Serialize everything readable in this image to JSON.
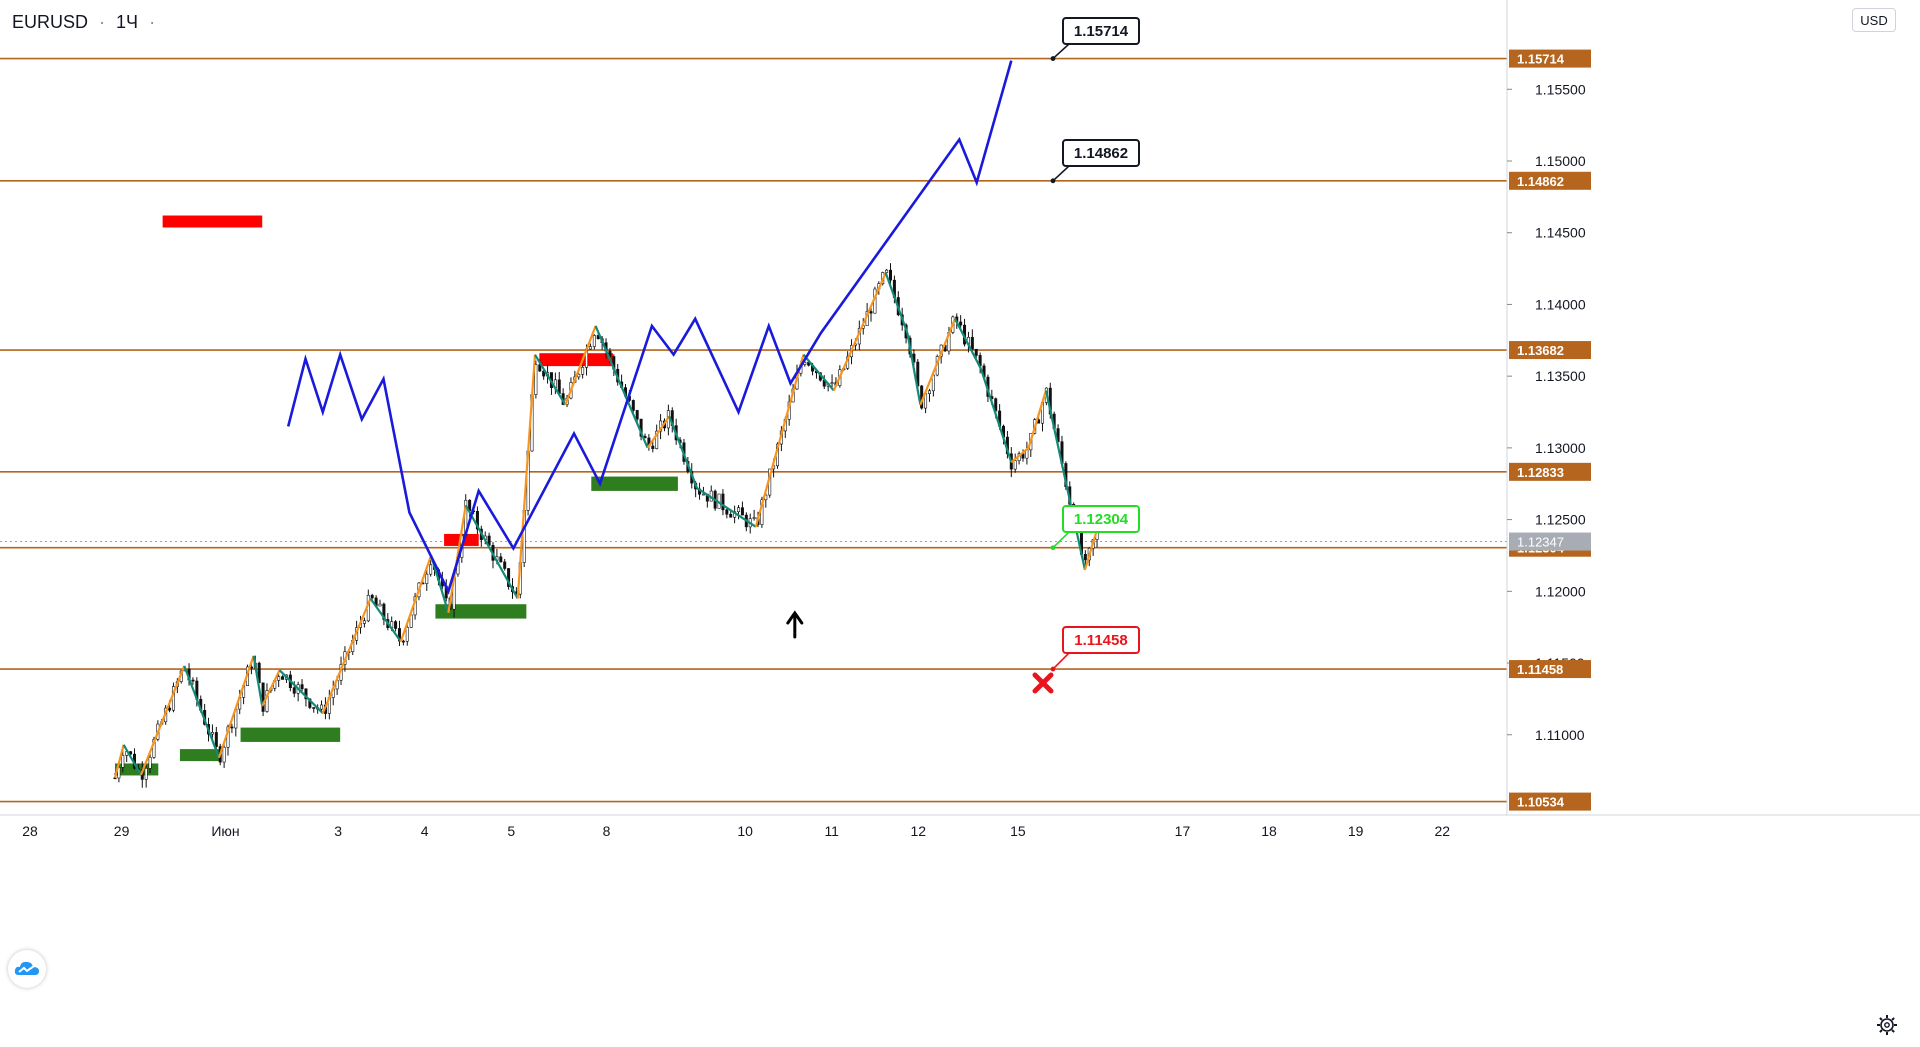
{
  "header": {
    "symbol": "EURUSD",
    "separator": "·",
    "interval": "1Ч",
    "currency": "USD"
  },
  "icons": {
    "logo": "tradingview-cloud-icon",
    "settings": "gear-icon",
    "target_arrow": "arrow-up-icon",
    "stop_marker": "x-mark-icon"
  },
  "colors": {
    "level_line": "#b5651d",
    "projection": "#1a1adc",
    "zigzag_up": "#f7941d",
    "zigzag_down": "#138a78",
    "supply_zone": "#ff0000",
    "demand_zone": "#2e7d1f",
    "candle": "#111111",
    "target_label_text": "#131722",
    "stop_label": "#e8151d",
    "entry_label": "#22dd22"
  },
  "chart_data": {
    "type": "line",
    "title": "EURUSD · 1Ч",
    "xlabel": "",
    "ylabel": "",
    "ylim": [
      1.105,
      1.163
    ],
    "x_ticks": [
      "28",
      "29",
      "Июн",
      "3",
      "4",
      "5",
      "8",
      "10",
      "11",
      "12",
      "15",
      "17",
      "18",
      "19",
      "22"
    ],
    "y_ticks": [
      "1.11000",
      "1.11500",
      "1.12000",
      "1.12500",
      "1.13000",
      "1.13500",
      "1.14000",
      "1.14500",
      "1.15000",
      "1.15500"
    ],
    "current_price": "1.12347",
    "levels": [
      {
        "value": 1.15714,
        "label": "1.15714"
      },
      {
        "value": 1.14862,
        "label": "1.14862"
      },
      {
        "value": 1.13682,
        "label": "1.13682"
      },
      {
        "value": 1.12833,
        "label": "1.12833"
      },
      {
        "value": 1.12304,
        "label": "1.12304"
      },
      {
        "value": 1.11458,
        "label": "1.11458"
      },
      {
        "value": 1.10534,
        "label": "1.10534"
      }
    ],
    "callouts": [
      {
        "text": "1.15714",
        "kind": "target"
      },
      {
        "text": "1.14862",
        "kind": "target"
      },
      {
        "text": "1.12304",
        "kind": "entry"
      },
      {
        "text": "1.11458",
        "kind": "stop"
      }
    ],
    "series": [
      {
        "kind": "projection",
        "points": [
          [
            1.1315,
            2.0
          ],
          [
            1.1362,
            2.2
          ],
          [
            1.1325,
            2.4
          ],
          [
            1.1365,
            2.6
          ],
          [
            1.132,
            2.85
          ],
          [
            1.1348,
            3.1
          ],
          [
            1.1255,
            3.4
          ],
          [
            1.12,
            3.85
          ],
          [
            1.127,
            4.2
          ],
          [
            1.123,
            4.6
          ],
          [
            1.131,
            5.3
          ],
          [
            1.1275,
            5.6
          ],
          [
            1.1385,
            6.2
          ],
          [
            1.1365,
            6.45
          ],
          [
            1.139,
            6.7
          ],
          [
            1.1325,
            7.2
          ],
          [
            1.1385,
            7.55
          ],
          [
            1.1345,
            7.8
          ],
          [
            1.138,
            8.15
          ],
          [
            1.1515,
            9.75
          ],
          [
            1.1485,
            9.95
          ],
          [
            1.157,
            10.35
          ]
        ]
      }
    ],
    "x_domain_note": "hourly session index"
  }
}
